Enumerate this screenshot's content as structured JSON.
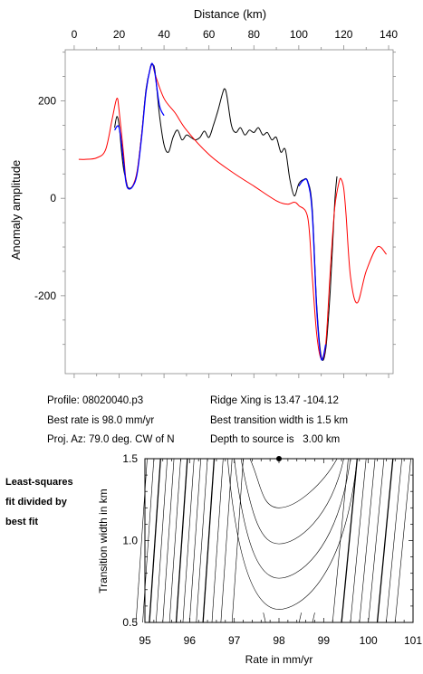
{
  "chart_data": [
    {
      "type": "line",
      "xlabel": "Distance (km)",
      "ylabel": "Anomaly amplitude",
      "xlim": [
        -4,
        142
      ],
      "ylim": [
        -360,
        305
      ],
      "xticks": [
        0,
        20,
        40,
        60,
        80,
        100,
        120,
        140
      ],
      "yticks": [
        200,
        0,
        -200
      ],
      "series": [
        {
          "color": "#000000",
          "x": [
            18,
            19,
            20,
            21,
            22,
            23,
            24,
            26,
            28,
            30,
            32,
            34,
            35,
            36,
            38,
            40,
            42,
            44,
            46,
            48,
            50,
            52,
            54,
            56,
            58,
            60,
            62,
            64,
            66,
            67,
            68,
            70,
            72,
            74,
            76,
            78,
            80,
            82,
            84,
            86,
            88,
            90,
            92,
            94,
            96,
            98,
            100,
            102,
            104,
            106,
            108,
            110,
            112,
            114,
            116,
            117
          ],
          "y": [
            145,
            168,
            150,
            100,
            60,
            40,
            22,
            25,
            52,
            130,
            225,
            268,
            274,
            260,
            170,
            110,
            95,
            125,
            140,
            120,
            130,
            125,
            120,
            125,
            138,
            125,
            150,
            180,
            215,
            225,
            210,
            150,
            135,
            145,
            130,
            140,
            135,
            145,
            130,
            135,
            120,
            125,
            95,
            100,
            40,
            5,
            30,
            38,
            35,
            -20,
            -220,
            -325,
            -310,
            -190,
            -10,
            45
          ]
        },
        {
          "color": "#ff0000",
          "x": [
            2,
            5,
            10,
            14,
            17,
            19,
            20,
            22,
            23,
            24,
            26,
            28,
            30,
            32,
            34,
            35,
            36,
            40,
            45,
            50,
            60,
            70,
            80,
            90,
            95,
            98,
            100,
            104,
            106,
            108,
            110,
            112,
            114,
            116,
            118,
            119,
            120,
            121,
            123,
            126,
            130,
            135,
            139
          ],
          "y": [
            80,
            80,
            83,
            100,
            165,
            205,
            180,
            90,
            40,
            20,
            25,
            55,
            130,
            220,
            270,
            275,
            255,
            205,
            175,
            140,
            90,
            55,
            25,
            -5,
            -12,
            -8,
            -15,
            -40,
            -160,
            -280,
            -330,
            -300,
            -150,
            -20,
            35,
            38,
            20,
            -30,
            -160,
            -215,
            -150,
            -100,
            -115
          ]
        },
        {
          "color": "#0000ff",
          "x": [
            18,
            20,
            22,
            23,
            24,
            26,
            28,
            30,
            32,
            34,
            35,
            36,
            38,
            40,
            100,
            102,
            104,
            106,
            108,
            110,
            112
          ],
          "y": [
            140,
            145,
            75,
            35,
            20,
            24,
            50,
            125,
            220,
            270,
            275,
            255,
            190,
            170,
            25,
            37,
            33,
            -30,
            -230,
            -330,
            -300
          ]
        }
      ]
    },
    {
      "type": "contour",
      "xlabel": "Rate in mm/yr",
      "ylabel": "Transition width in km",
      "xlim": [
        95,
        101
      ],
      "ylim": [
        0.5,
        1.5
      ],
      "xticks": [
        95,
        96,
        97,
        98,
        99,
        100,
        101
      ],
      "yticks": [
        1.5,
        1.0,
        0.5
      ],
      "best_fit": {
        "rate": 98.0,
        "width": 1.5
      }
    }
  ],
  "profile_info": {
    "profile": "Profile: 08020040.p3",
    "best_rate": "Best rate is 98.0 mm/yr",
    "proj_az": "Proj. Az: 79.0 deg. CW of N",
    "ridge_xing": "Ridge Xing is 13.47 -104.12",
    "best_width": "Best transition width is 1.5 km",
    "depth": "Depth to source is   3.00 km"
  },
  "side_note": {
    "line1": "Least-squares",
    "line2": "fit divided by",
    "line3": "best fit"
  }
}
